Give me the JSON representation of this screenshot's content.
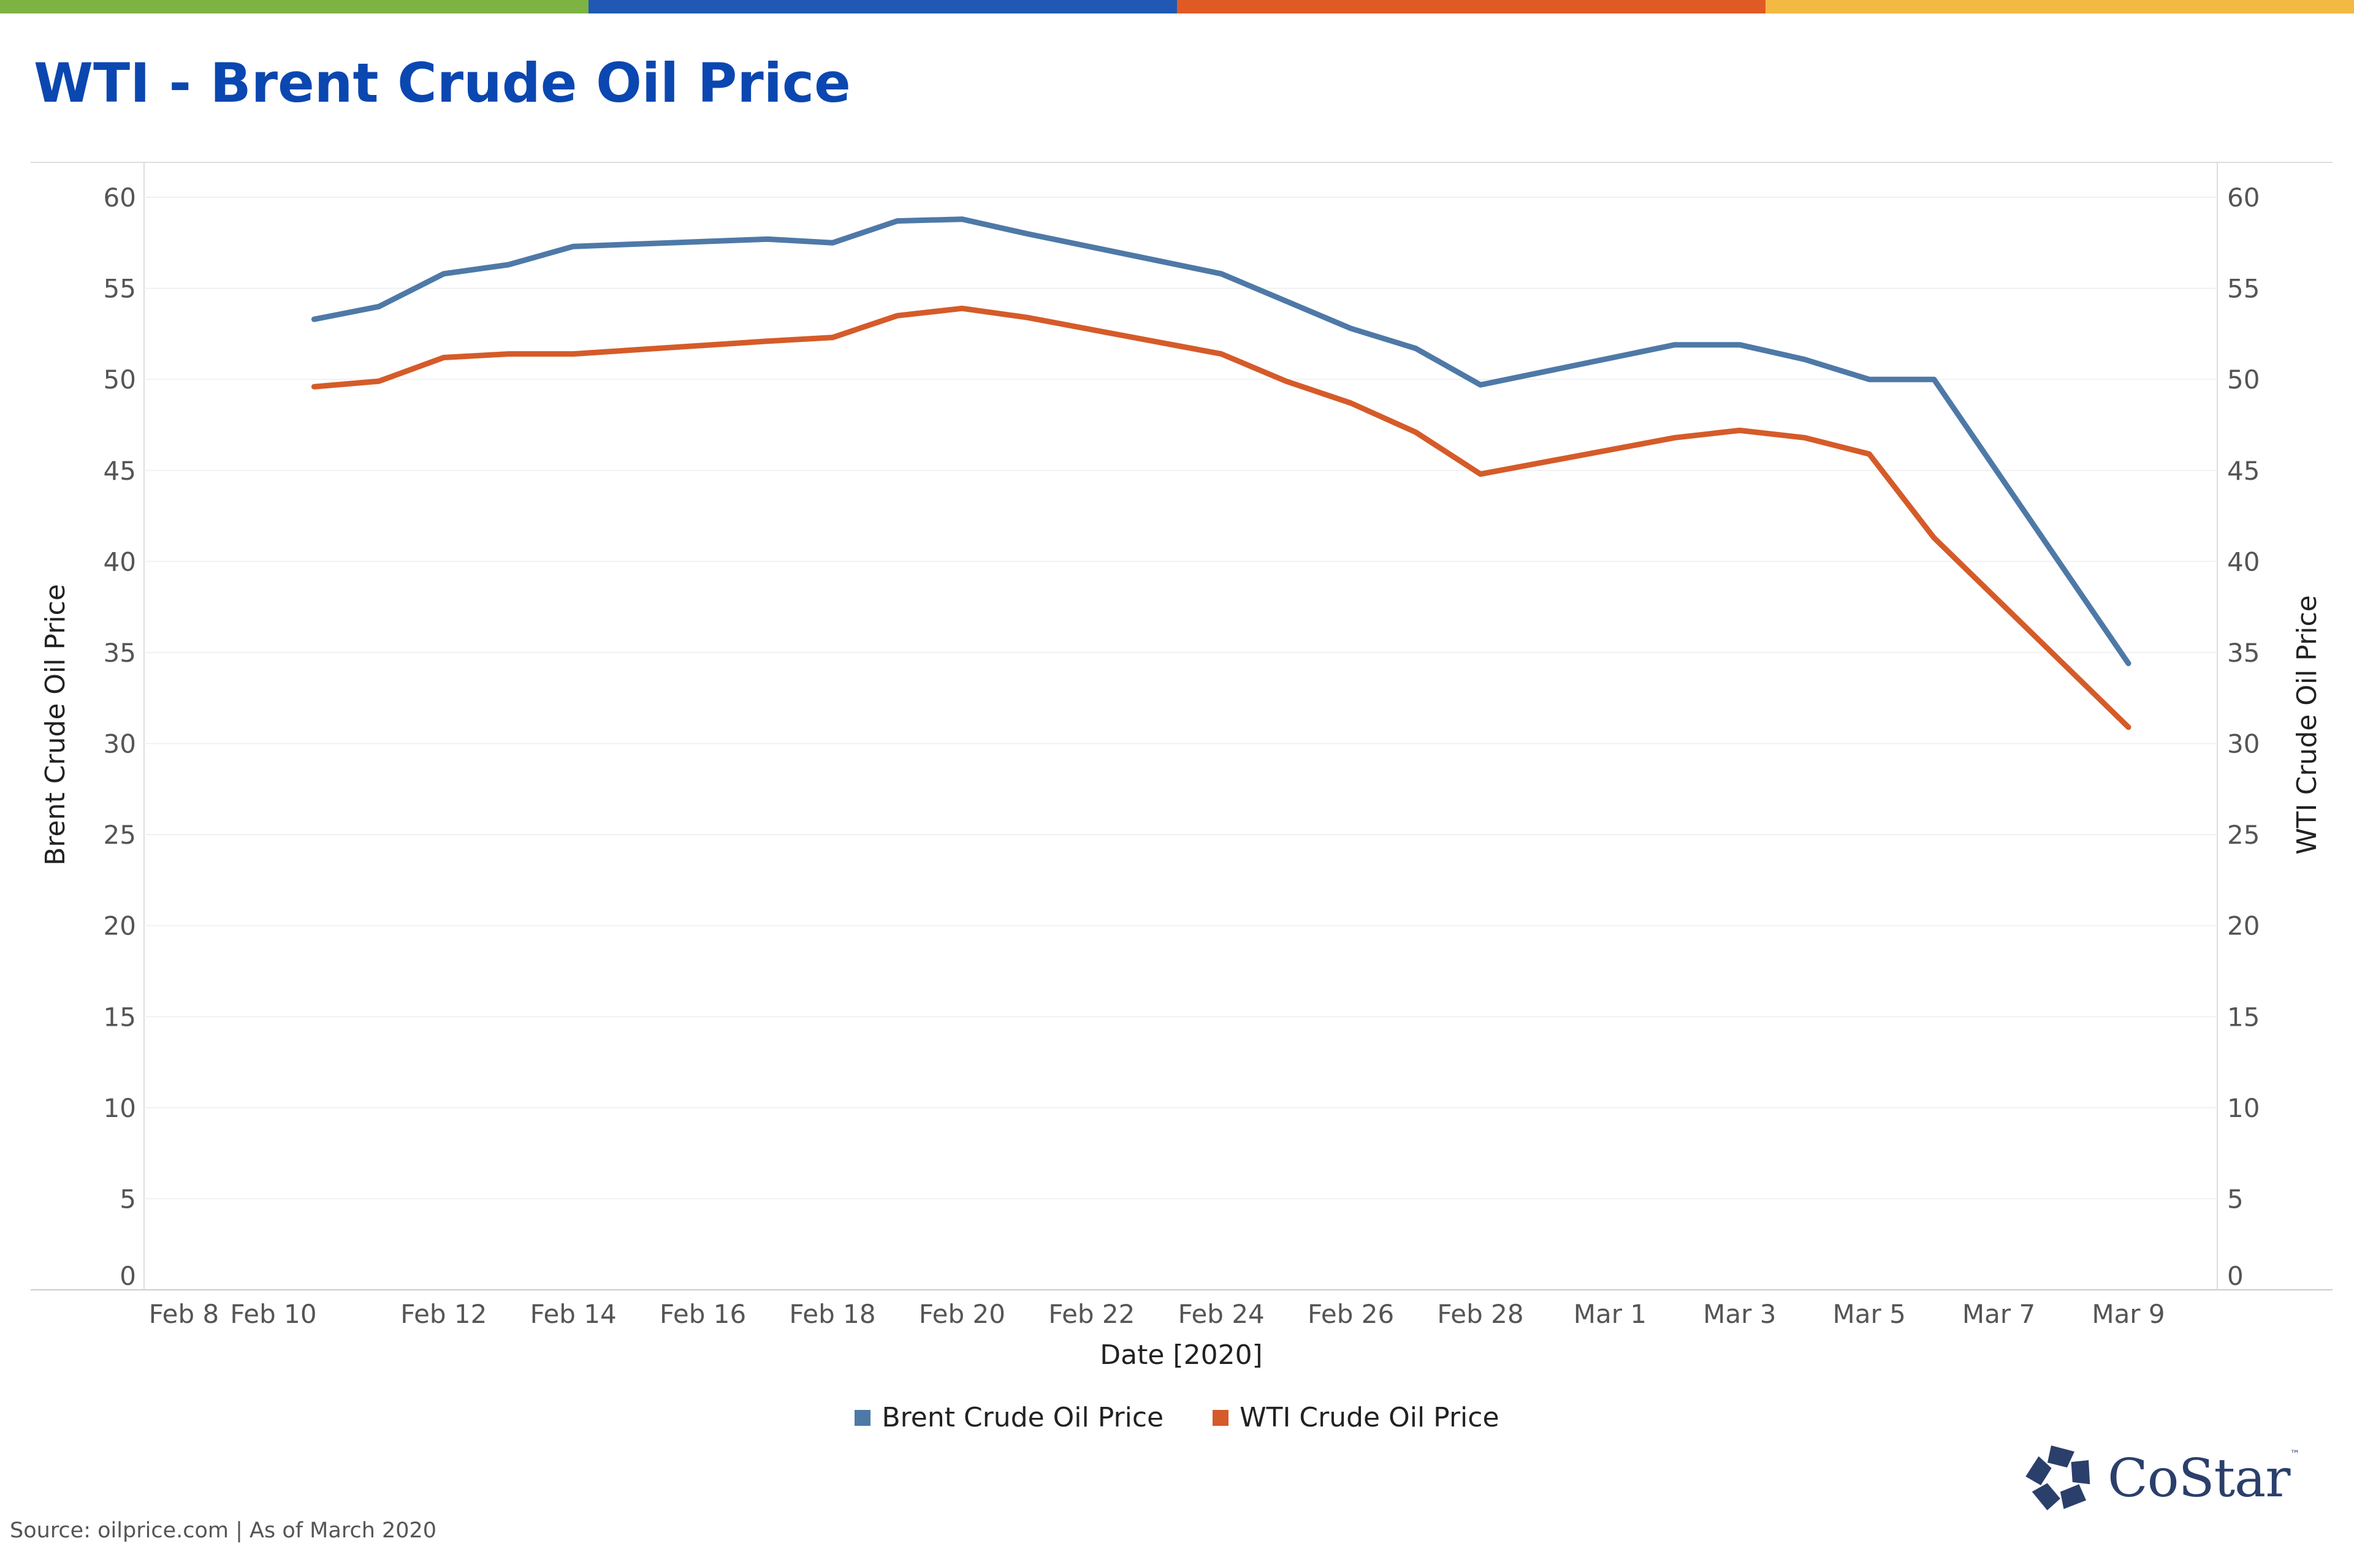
{
  "header": {
    "title": "WTI - Brent Crude Oil Price",
    "title_color": "#0b47b0",
    "stripe_colors": [
      "#7cb342",
      "#2058b4",
      "#e05a26",
      "#f4b942"
    ]
  },
  "chart_data": {
    "type": "line",
    "xlabel": "Date [2020]",
    "ylabel_left": "Brent Crude Oil Price",
    "ylabel_right": "WTI Crude Oil Price",
    "ylim": [
      0,
      60
    ],
    "y_ticks": [
      "0",
      "5",
      "10",
      "15",
      "20",
      "25",
      "30",
      "35",
      "40",
      "45",
      "50",
      "55",
      "60"
    ],
    "x_tick_labels": [
      "Feb 8",
      "Feb 10",
      "Feb 12",
      "Feb 14",
      "Feb 16",
      "Feb 18",
      "Feb 20",
      "Feb 22",
      "Feb 24",
      "Feb 26",
      "Feb 28",
      "Mar 1",
      "Mar 3",
      "Mar 5",
      "Mar 7",
      "Mar 9"
    ],
    "x": [
      "2020-02-10",
      "2020-02-11",
      "2020-02-12",
      "2020-02-13",
      "2020-02-14",
      "2020-02-17",
      "2020-02-18",
      "2020-02-19",
      "2020-02-20",
      "2020-02-21",
      "2020-02-24",
      "2020-02-25",
      "2020-02-26",
      "2020-02-27",
      "2020-02-28",
      "2020-03-02",
      "2020-03-03",
      "2020-03-04",
      "2020-03-05",
      "2020-03-06",
      "2020-03-09"
    ],
    "series": [
      {
        "name": "Brent Crude Oil Price",
        "color": "#4e79a7",
        "values": [
          53.3,
          54.0,
          55.8,
          56.3,
          57.3,
          57.7,
          57.5,
          58.7,
          58.8,
          58.0,
          55.8,
          54.3,
          52.8,
          51.7,
          49.7,
          51.9,
          51.9,
          51.1,
          50.0,
          50.0,
          34.4
        ]
      },
      {
        "name": "WTI Crude Oil Price",
        "color": "#d55b29",
        "values": [
          49.6,
          49.9,
          51.2,
          51.4,
          51.4,
          52.1,
          52.3,
          53.5,
          53.9,
          53.4,
          51.4,
          49.9,
          48.7,
          47.1,
          44.8,
          46.8,
          47.2,
          46.8,
          45.9,
          41.3,
          30.9
        ]
      }
    ],
    "legend_position": "bottom-center",
    "grid": true
  },
  "footer": {
    "source": "Source: oilprice.com | As of March 2020",
    "logo_text": "CoStar",
    "logo_tm": "™",
    "logo_color": "#2b3f6b"
  }
}
